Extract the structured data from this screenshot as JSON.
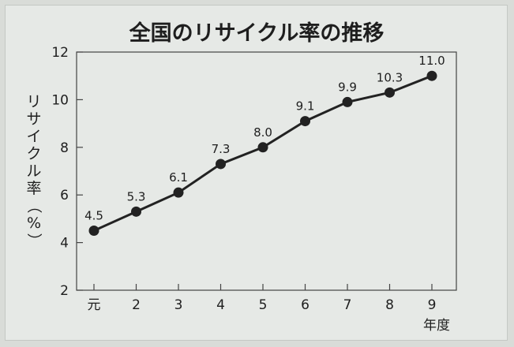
{
  "chart_data": {
    "type": "line",
    "title": "全国のリサイクル率の推移",
    "xlabel": "年度",
    "ylabel": "リサイクル率（%）",
    "categories": [
      "元",
      "2",
      "3",
      "4",
      "5",
      "6",
      "7",
      "8",
      "9"
    ],
    "values": [
      4.5,
      5.3,
      6.1,
      7.3,
      8.0,
      9.1,
      9.9,
      10.3,
      11.0
    ],
    "data_labels": [
      "4.5",
      "5.3",
      "6.1",
      "7.3",
      "8.0",
      "9.1",
      "9.9",
      "10.3",
      "11.0"
    ],
    "ylim": [
      2,
      12
    ],
    "yticks": [
      2,
      4,
      6,
      8,
      10,
      12
    ],
    "grid": false,
    "colors": {
      "line": "#222222",
      "marker": "#222222",
      "background": "#e6e9e6"
    }
  }
}
